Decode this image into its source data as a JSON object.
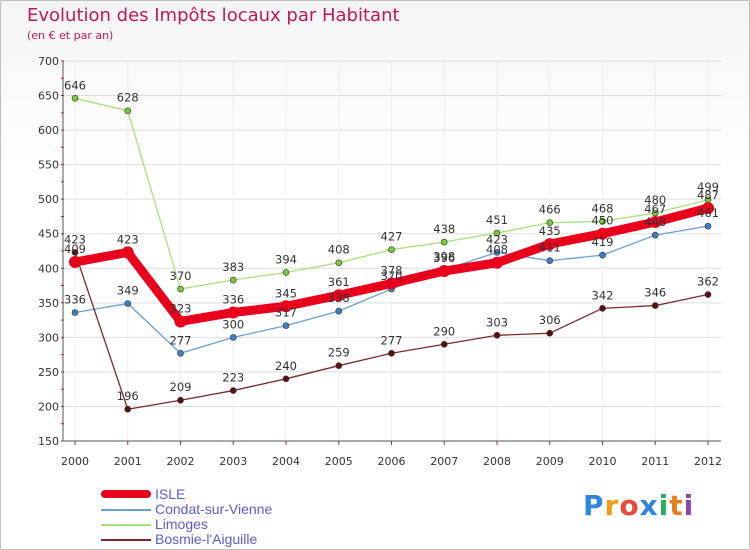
{
  "header": {
    "title": "Evolution des Impôts locaux par Habitant",
    "subtitle": "(en € et par an)"
  },
  "brand": {
    "letters": [
      "P",
      "r",
      "o",
      "x",
      "i",
      "t",
      "i"
    ],
    "colors": [
      "#2e86de",
      "#f39c12",
      "#e74c3c",
      "#2e86de",
      "#27ae60",
      "#e67e22",
      "#8e44ad"
    ]
  },
  "chart_data": {
    "type": "line",
    "title": "Evolution des Impôts locaux par Habitant",
    "ylabel": "(en € et par an)",
    "xlabel": "",
    "ylim": [
      150,
      700
    ],
    "yticks": [
      150,
      200,
      250,
      300,
      350,
      400,
      450,
      500,
      550,
      600,
      650,
      700
    ],
    "categories": [
      "2000",
      "2001",
      "2002",
      "2003",
      "2004",
      "2005",
      "2006",
      "2007",
      "2008",
      "2009",
      "2010",
      "2011",
      "2012"
    ],
    "grid": "horizontal",
    "legend_position": "bottom-left",
    "series": [
      {
        "name": "ISLE",
        "color": "#e8001c",
        "marker": "#e8001c",
        "values": [
          409,
          423,
          323,
          336,
          345,
          361,
          378,
          396,
          408,
          435,
          450,
          467,
          487
        ]
      },
      {
        "name": "Condat-sur-Vienne",
        "color": "#6a9fd8",
        "marker": "#3b82c4",
        "values": [
          336,
          349,
          277,
          300,
          317,
          338,
          370,
          398,
          423,
          411,
          419,
          448,
          461
        ]
      },
      {
        "name": "Limoges",
        "color": "#a8e07a",
        "marker": "#7bc83a",
        "values": [
          646,
          628,
          370,
          383,
          394,
          408,
          427,
          438,
          451,
          466,
          468,
          480,
          499
        ]
      },
      {
        "name": "Bosmie-l'Aiguille",
        "color": "#7a2a2a",
        "marker": "#5a1010",
        "values": [
          423,
          196,
          209,
          223,
          240,
          259,
          277,
          290,
          303,
          306,
          342,
          346,
          362
        ]
      }
    ]
  },
  "legend": {
    "items": [
      "ISLE",
      "Condat-sur-Vienne",
      "Limoges",
      "Bosmie-l'Aiguille"
    ]
  }
}
